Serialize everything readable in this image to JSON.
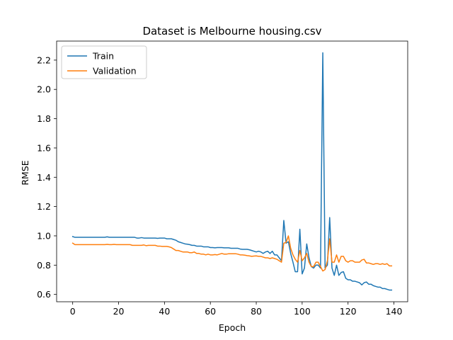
{
  "chart_data": {
    "type": "line",
    "title": "Dataset is Melbourne housing.csv",
    "xlabel": "Epoch",
    "ylabel": "RMSE",
    "xlim": [
      -7,
      146
    ],
    "ylim": [
      0.55,
      2.33
    ],
    "xticks": [
      0,
      20,
      40,
      60,
      80,
      100,
      120,
      140
    ],
    "yticks": [
      0.6,
      0.8,
      1.0,
      1.2,
      1.4,
      1.6,
      1.8,
      2.0,
      2.2
    ],
    "grid": false,
    "legend_position": "top-left",
    "series": [
      {
        "name": "Train",
        "color": "#1f77b4",
        "x": [
          0,
          1,
          2,
          3,
          4,
          5,
          6,
          7,
          8,
          9,
          10,
          11,
          12,
          13,
          14,
          15,
          16,
          17,
          18,
          19,
          20,
          21,
          22,
          23,
          24,
          25,
          26,
          27,
          28,
          29,
          30,
          31,
          32,
          33,
          34,
          35,
          36,
          37,
          38,
          39,
          40,
          41,
          42,
          43,
          44,
          45,
          46,
          47,
          48,
          49,
          50,
          51,
          52,
          53,
          54,
          55,
          56,
          57,
          58,
          59,
          60,
          61,
          62,
          63,
          64,
          65,
          66,
          67,
          68,
          69,
          70,
          71,
          72,
          73,
          74,
          75,
          76,
          77,
          78,
          79,
          80,
          81,
          82,
          83,
          84,
          85,
          86,
          87,
          88,
          89,
          90,
          91,
          92,
          93,
          94,
          95,
          96,
          97,
          98,
          99,
          100,
          101,
          102,
          103,
          104,
          105,
          106,
          107,
          108,
          109,
          110,
          111,
          112,
          113,
          114,
          115,
          116,
          117,
          118,
          119,
          120,
          121,
          122,
          123,
          124,
          125,
          126,
          127,
          128,
          129,
          130,
          131,
          132,
          133,
          134,
          135,
          136,
          137,
          138,
          139
        ],
        "y": [
          0.995,
          0.99,
          0.99,
          0.99,
          0.99,
          0.99,
          0.99,
          0.99,
          0.99,
          0.99,
          0.99,
          0.99,
          0.99,
          0.99,
          0.99,
          0.993,
          0.99,
          0.99,
          0.99,
          0.99,
          0.99,
          0.99,
          0.99,
          0.99,
          0.99,
          0.99,
          0.99,
          0.99,
          0.985,
          0.985,
          0.988,
          0.985,
          0.985,
          0.985,
          0.985,
          0.985,
          0.985,
          0.983,
          0.985,
          0.985,
          0.985,
          0.98,
          0.98,
          0.98,
          0.975,
          0.97,
          0.96,
          0.955,
          0.95,
          0.945,
          0.943,
          0.94,
          0.935,
          0.935,
          0.93,
          0.93,
          0.93,
          0.925,
          0.925,
          0.925,
          0.92,
          0.92,
          0.918,
          0.92,
          0.92,
          0.92,
          0.918,
          0.918,
          0.918,
          0.915,
          0.915,
          0.915,
          0.915,
          0.91,
          0.908,
          0.908,
          0.908,
          0.905,
          0.9,
          0.895,
          0.89,
          0.895,
          0.89,
          0.88,
          0.89,
          0.895,
          0.88,
          0.895,
          0.87,
          0.87,
          0.85,
          0.83,
          1.105,
          0.95,
          0.96,
          0.88,
          0.82,
          0.755,
          0.755,
          1.045,
          0.74,
          0.78,
          0.945,
          0.85,
          0.79,
          0.78,
          0.8,
          0.8,
          0.78,
          2.25,
          0.78,
          0.8,
          1.125,
          0.78,
          0.73,
          0.8,
          0.73,
          0.75,
          0.755,
          0.71,
          0.7,
          0.7,
          0.69,
          0.69,
          0.685,
          0.68,
          0.665,
          0.68,
          0.685,
          0.67,
          0.67,
          0.66,
          0.655,
          0.65,
          0.65,
          0.64,
          0.64,
          0.635,
          0.63,
          0.63
        ]
      },
      {
        "name": "Validation",
        "color": "#ff7f0e",
        "x": [
          0,
          1,
          2,
          3,
          4,
          5,
          6,
          7,
          8,
          9,
          10,
          11,
          12,
          13,
          14,
          15,
          16,
          17,
          18,
          19,
          20,
          21,
          22,
          23,
          24,
          25,
          26,
          27,
          28,
          29,
          30,
          31,
          32,
          33,
          34,
          35,
          36,
          37,
          38,
          39,
          40,
          41,
          42,
          43,
          44,
          45,
          46,
          47,
          48,
          49,
          50,
          51,
          52,
          53,
          54,
          55,
          56,
          57,
          58,
          59,
          60,
          61,
          62,
          63,
          64,
          65,
          66,
          67,
          68,
          69,
          70,
          71,
          72,
          73,
          74,
          75,
          76,
          77,
          78,
          79,
          80,
          81,
          82,
          83,
          84,
          85,
          86,
          87,
          88,
          89,
          90,
          91,
          92,
          93,
          94,
          95,
          96,
          97,
          98,
          99,
          100,
          101,
          102,
          103,
          104,
          105,
          106,
          107,
          108,
          109,
          110,
          111,
          112,
          113,
          114,
          115,
          116,
          117,
          118,
          119,
          120,
          121,
          122,
          123,
          124,
          125,
          126,
          127,
          128,
          129,
          130,
          131,
          132,
          133,
          134,
          135,
          136,
          137,
          138,
          139
        ],
        "y": [
          0.95,
          0.94,
          0.94,
          0.94,
          0.94,
          0.94,
          0.94,
          0.94,
          0.94,
          0.94,
          0.94,
          0.94,
          0.94,
          0.94,
          0.94,
          0.942,
          0.94,
          0.94,
          0.942,
          0.94,
          0.94,
          0.94,
          0.94,
          0.94,
          0.94,
          0.94,
          0.935,
          0.935,
          0.935,
          0.935,
          0.935,
          0.938,
          0.933,
          0.935,
          0.935,
          0.935,
          0.935,
          0.93,
          0.93,
          0.928,
          0.928,
          0.928,
          0.925,
          0.92,
          0.91,
          0.9,
          0.9,
          0.895,
          0.89,
          0.89,
          0.89,
          0.885,
          0.885,
          0.89,
          0.88,
          0.88,
          0.875,
          0.875,
          0.87,
          0.875,
          0.87,
          0.87,
          0.872,
          0.87,
          0.875,
          0.88,
          0.875,
          0.875,
          0.878,
          0.878,
          0.878,
          0.878,
          0.875,
          0.87,
          0.87,
          0.868,
          0.865,
          0.863,
          0.86,
          0.862,
          0.863,
          0.86,
          0.86,
          0.855,
          0.85,
          0.85,
          0.845,
          0.85,
          0.845,
          0.84,
          0.83,
          0.82,
          0.95,
          0.955,
          1.0,
          0.915,
          0.87,
          0.84,
          0.82,
          0.9,
          0.83,
          0.85,
          0.88,
          0.82,
          0.79,
          0.79,
          0.82,
          0.82,
          0.79,
          0.76,
          0.77,
          0.83,
          0.98,
          0.82,
          0.82,
          0.87,
          0.82,
          0.86,
          0.86,
          0.83,
          0.82,
          0.83,
          0.83,
          0.82,
          0.82,
          0.82,
          0.835,
          0.84,
          0.815,
          0.815,
          0.81,
          0.805,
          0.81,
          0.81,
          0.805,
          0.81,
          0.805,
          0.81,
          0.795,
          0.795
        ]
      }
    ]
  }
}
